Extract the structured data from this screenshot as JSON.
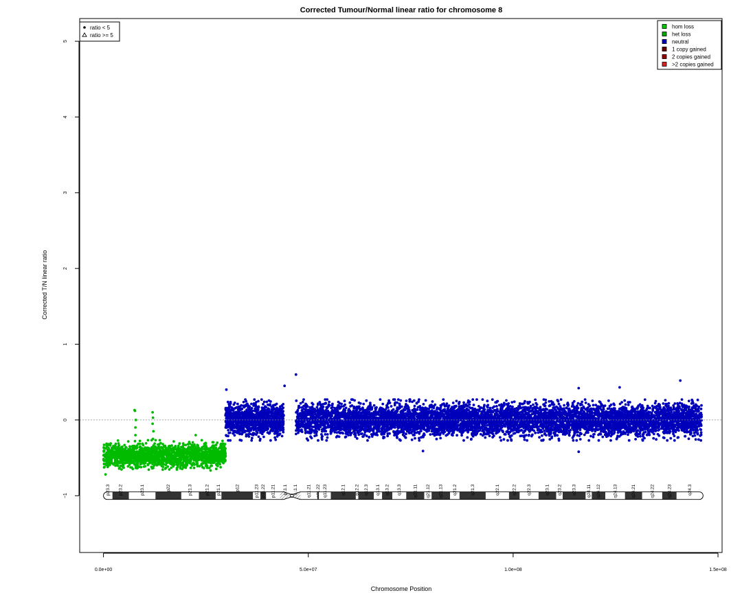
{
  "chart_data": {
    "type": "scatter",
    "title": "Corrected Tumour/Normal linear ratio for chromosome  8",
    "xlabel": "Chromosome Position",
    "ylabel": "Corrected T/N linear ratio",
    "xlim": [
      -5800000,
      151000000
    ],
    "ylim": [
      -1.75,
      5.3
    ],
    "x_ticks": [
      {
        "value": 0,
        "label": "0.0e+00"
      },
      {
        "value": 50000000,
        "label": "5.0e+07"
      },
      {
        "value": 100000000,
        "label": "1.0e+08"
      },
      {
        "value": 150000000,
        "label": "1.5e+08"
      }
    ],
    "y_ticks": [
      {
        "value": -1,
        "label": "−1"
      },
      {
        "value": 0,
        "label": "0"
      },
      {
        "value": 1,
        "label": "1"
      },
      {
        "value": 2,
        "label": "2"
      },
      {
        "value": 3,
        "label": "3"
      },
      {
        "value": 4,
        "label": "4"
      },
      {
        "value": 5,
        "label": "5"
      }
    ],
    "reference_line": 0,
    "shape_legend": {
      "placement": "top-left",
      "entries": [
        {
          "symbol": "dot",
          "label": "ratio < 5"
        },
        {
          "symbol": "triangle",
          "label": "ratio >= 5"
        }
      ]
    },
    "color_legend": {
      "placement": "top-right",
      "entries": [
        {
          "label": "hom loss",
          "color": "#00cc00"
        },
        {
          "label": "het loss",
          "color": "#00aa00"
        },
        {
          "label": "neutral",
          "color": "#0000bb"
        },
        {
          "label": "1 copy gained",
          "color": "#660000"
        },
        {
          "label": "2 copies gained",
          "color": "#990000"
        },
        {
          "label": ">2 copies gained",
          "color": "#dd2222"
        }
      ]
    },
    "segments": [
      {
        "state": "het loss",
        "color": "#00bb00",
        "x_start": 0,
        "x_end": 29800000,
        "mean": -0.47,
        "sd": 0.075,
        "count": 1700
      },
      {
        "state": "neutral",
        "color": "#0000bb",
        "x_start": 29800000,
        "x_end": 44000000,
        "mean": 0.0,
        "sd": 0.1,
        "count": 1200
      },
      {
        "state": "neutral",
        "color": "#0000bb",
        "x_start": 47000000,
        "x_end": 146000000,
        "mean": 0.0,
        "sd": 0.1,
        "count": 6800
      }
    ],
    "outliers": [
      {
        "x": 7600000,
        "y": 0.13,
        "color": "#00bb00"
      },
      {
        "x": 7700000,
        "y": 0.12,
        "color": "#00bb00"
      },
      {
        "x": 7900000,
        "y": 0.0,
        "color": "#00bb00"
      },
      {
        "x": 7800000,
        "y": -0.1,
        "color": "#00bb00"
      },
      {
        "x": 7800000,
        "y": -0.2,
        "color": "#00bb00"
      },
      {
        "x": 7700000,
        "y": -0.28,
        "color": "#00bb00"
      },
      {
        "x": 12000000,
        "y": 0.1,
        "color": "#00bb00"
      },
      {
        "x": 12100000,
        "y": 0.03,
        "color": "#00bb00"
      },
      {
        "x": 12000000,
        "y": -0.05,
        "color": "#00bb00"
      },
      {
        "x": 12200000,
        "y": -0.15,
        "color": "#00bb00"
      },
      {
        "x": 12100000,
        "y": -0.25,
        "color": "#00bb00"
      },
      {
        "x": 22500000,
        "y": -0.2,
        "color": "#00bb00"
      },
      {
        "x": 500000,
        "y": -0.72,
        "color": "#00bb00"
      },
      {
        "x": 30000000,
        "y": 0.4,
        "color": "#0000bb"
      },
      {
        "x": 44200000,
        "y": 0.45,
        "color": "#0000bb"
      },
      {
        "x": 47000000,
        "y": 0.6,
        "color": "#0000bb"
      },
      {
        "x": 140800000,
        "y": 0.52,
        "color": "#0000bb"
      },
      {
        "x": 126000000,
        "y": 0.43,
        "color": "#0000bb"
      },
      {
        "x": 116000000,
        "y": 0.42,
        "color": "#0000bb"
      },
      {
        "x": 78000000,
        "y": -0.41,
        "color": "#0000bb"
      },
      {
        "x": 116000000,
        "y": -0.42,
        "color": "#0000bb"
      }
    ],
    "ideogram": {
      "y": -1,
      "centromere": [
        44000000,
        48000000
      ],
      "bands": [
        {
          "name": "p23.3",
          "start": 0,
          "end": 2200000,
          "stain": "gneg"
        },
        {
          "name": "p23.2",
          "start": 2200000,
          "end": 6200000,
          "stain": "gpos"
        },
        {
          "name": "p23.1",
          "start": 6200000,
          "end": 12700000,
          "stain": "gneg"
        },
        {
          "name": "p22",
          "start": 12700000,
          "end": 19000000,
          "stain": "gpos"
        },
        {
          "name": "p21.3",
          "start": 19000000,
          "end": 23300000,
          "stain": "gneg"
        },
        {
          "name": "p21.2",
          "start": 23300000,
          "end": 27400000,
          "stain": "gpos"
        },
        {
          "name": "p21.1",
          "start": 27400000,
          "end": 28800000,
          "stain": "gneg"
        },
        {
          "name": "p12",
          "start": 28800000,
          "end": 36500000,
          "stain": "gpos"
        },
        {
          "name": "p11.23",
          "start": 36500000,
          "end": 38300000,
          "stain": "gneg"
        },
        {
          "name": "p11.22",
          "start": 38300000,
          "end": 39700000,
          "stain": "gpos"
        },
        {
          "name": "p11.21",
          "start": 39700000,
          "end": 43100000,
          "stain": "gneg"
        },
        {
          "name": "p11.1",
          "start": 43100000,
          "end": 45600000,
          "stain": "acen"
        },
        {
          "name": "q11.1",
          "start": 45600000,
          "end": 48100000,
          "stain": "acen"
        },
        {
          "name": "q11.21",
          "start": 48100000,
          "end": 52200000,
          "stain": "gneg"
        },
        {
          "name": "q11.22",
          "start": 52200000,
          "end": 52600000,
          "stain": "gpos"
        },
        {
          "name": "q11.23",
          "start": 52600000,
          "end": 55500000,
          "stain": "gneg"
        },
        {
          "name": "q12.1",
          "start": 55500000,
          "end": 61600000,
          "stain": "gpos"
        },
        {
          "name": "q12.2",
          "start": 61600000,
          "end": 62200000,
          "stain": "gneg"
        },
        {
          "name": "q12.3",
          "start": 62200000,
          "end": 66000000,
          "stain": "gpos"
        },
        {
          "name": "q13.1",
          "start": 66000000,
          "end": 68000000,
          "stain": "gneg"
        },
        {
          "name": "q13.2",
          "start": 68000000,
          "end": 70500000,
          "stain": "gpos"
        },
        {
          "name": "q13.3",
          "start": 70500000,
          "end": 73900000,
          "stain": "gneg"
        },
        {
          "name": "q21.11",
          "start": 73900000,
          "end": 78300000,
          "stain": "gpos"
        },
        {
          "name": "q21.12",
          "start": 78300000,
          "end": 80100000,
          "stain": "gneg"
        },
        {
          "name": "q21.13",
          "start": 80100000,
          "end": 84600000,
          "stain": "gpos"
        },
        {
          "name": "q21.2",
          "start": 84600000,
          "end": 86900000,
          "stain": "gneg"
        },
        {
          "name": "q21.3",
          "start": 86900000,
          "end": 93300000,
          "stain": "gpos"
        },
        {
          "name": "q22.1",
          "start": 93300000,
          "end": 99000000,
          "stain": "gneg"
        },
        {
          "name": "q22.2",
          "start": 99000000,
          "end": 101600000,
          "stain": "gpos"
        },
        {
          "name": "q22.3",
          "start": 101600000,
          "end": 106200000,
          "stain": "gneg"
        },
        {
          "name": "q23.1",
          "start": 106200000,
          "end": 110500000,
          "stain": "gpos"
        },
        {
          "name": "q23.2",
          "start": 110500000,
          "end": 112100000,
          "stain": "gneg"
        },
        {
          "name": "q23.3",
          "start": 112100000,
          "end": 117700000,
          "stain": "gpos"
        },
        {
          "name": "q24.11",
          "start": 117700000,
          "end": 119200000,
          "stain": "gneg"
        },
        {
          "name": "q24.12",
          "start": 119200000,
          "end": 122500000,
          "stain": "gpos"
        },
        {
          "name": "q24.13",
          "start": 122500000,
          "end": 127300000,
          "stain": "gneg"
        },
        {
          "name": "q24.21",
          "start": 127300000,
          "end": 131500000,
          "stain": "gpos"
        },
        {
          "name": "q24.22",
          "start": 131500000,
          "end": 136400000,
          "stain": "gneg"
        },
        {
          "name": "q24.23",
          "start": 136400000,
          "end": 139900000,
          "stain": "gpos"
        },
        {
          "name": "q24.3",
          "start": 139900000,
          "end": 146364022,
          "stain": "gneg"
        }
      ]
    }
  }
}
